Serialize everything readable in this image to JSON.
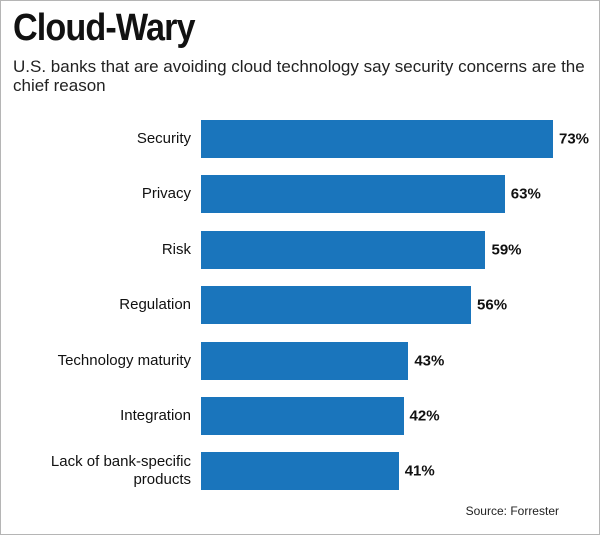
{
  "chart_data": {
    "type": "bar",
    "orientation": "horizontal",
    "title": "Cloud-Wary",
    "subtitle": "U.S. banks that are avoiding cloud technology say security concerns are the chief reason",
    "categories": [
      "Security",
      "Privacy",
      "Risk",
      "Regulation",
      "Technology maturity",
      "Integration",
      "Lack of bank-specific products"
    ],
    "values": [
      73,
      63,
      59,
      56,
      43,
      42,
      41
    ],
    "value_labels": [
      "73%",
      "63%",
      "59%",
      "56%",
      "43%",
      "42%",
      "41%"
    ],
    "color": "#1a75bc",
    "source": "Source: Forrester"
  }
}
